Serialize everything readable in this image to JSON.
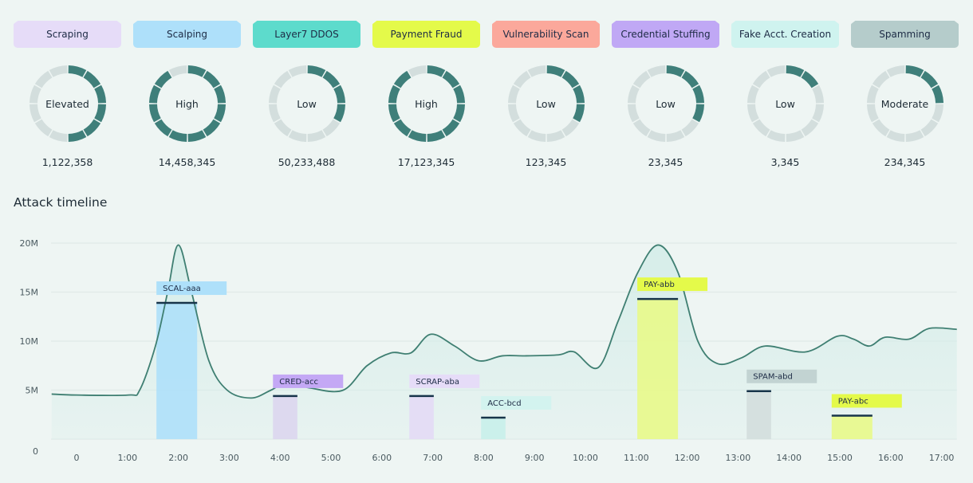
{
  "categories": [
    {
      "name": "Scraping",
      "color": "#e6dcf8",
      "level": "Elevated",
      "segments_active": 6,
      "count": "1,122,358"
    },
    {
      "name": "Scalping",
      "color": "#aee0fa",
      "level": "High",
      "segments_active": 11,
      "count": "14,458,345"
    },
    {
      "name": "Layer7 DDOS",
      "color": "#5ddbcc",
      "level": "Low",
      "segments_active": 4,
      "count": "50,233,488"
    },
    {
      "name": "Payment Fraud",
      "color": "#e4fa4a",
      "level": "High",
      "segments_active": 11,
      "count": "17,123,345"
    },
    {
      "name": "Vulnerability Scan",
      "color": "#fba89b",
      "level": "Low",
      "segments_active": 4,
      "count": "123,345"
    },
    {
      "name": "Credential Stuffing",
      "color": "#c0a8f5",
      "level": "Low",
      "segments_active": 4,
      "count": "23,345"
    },
    {
      "name": "Fake Acct. Creation",
      "color": "#cff3ef",
      "level": "Low",
      "segments_active": 2,
      "count": "3,345"
    },
    {
      "name": "Spamming",
      "color": "#b5cccb",
      "level": "Moderate",
      "segments_active": 3,
      "count": "234,345"
    }
  ],
  "donut_segments_total": 12,
  "colors": {
    "active": "#3f7f7a",
    "inactive": "#d3dedd",
    "line": "#3f7f72",
    "area": "#d5ede9",
    "marker": "#17344a"
  },
  "timeline": {
    "title": "Attack timeline"
  },
  "chart_data": {
    "type": "area",
    "ylim": [
      0,
      20
    ],
    "xlim": [
      -0.5,
      17.3
    ],
    "yticks": [
      {
        "v": 0,
        "label": "0"
      },
      {
        "v": 5,
        "label": "5M"
      },
      {
        "v": 10,
        "label": "10M"
      },
      {
        "v": 15,
        "label": "15M"
      },
      {
        "v": 20,
        "label": "20M"
      }
    ],
    "xticks": [
      {
        "v": 0,
        "label": "0"
      },
      {
        "v": 1,
        "label": "1:00"
      },
      {
        "v": 2,
        "label": "2:00"
      },
      {
        "v": 3,
        "label": "3:00"
      },
      {
        "v": 4,
        "label": "4:00"
      },
      {
        "v": 5,
        "label": "5:00"
      },
      {
        "v": 6,
        "label": "6:00"
      },
      {
        "v": 7,
        "label": "7:00"
      },
      {
        "v": 8,
        "label": "8:00"
      },
      {
        "v": 9,
        "label": "9:00"
      },
      {
        "v": 10,
        "label": "10:00"
      },
      {
        "v": 11,
        "label": "11:00"
      },
      {
        "v": 12,
        "label": "12:00"
      },
      {
        "v": 13,
        "label": "13:00"
      },
      {
        "v": 14,
        "label": "14:00"
      },
      {
        "v": 15,
        "label": "15:00"
      },
      {
        "v": 16,
        "label": "16:00"
      },
      {
        "v": 17,
        "label": "17:00"
      }
    ],
    "grid": true,
    "x": [
      -0.49,
      0,
      1.02,
      1.24,
      1.55,
      1.79,
      2.0,
      2.26,
      2.6,
      2.96,
      3.43,
      3.82,
      4.14,
      4.61,
      5.24,
      5.71,
      6.18,
      6.57,
      6.96,
      7.43,
      7.9,
      8.37,
      8.84,
      9.47,
      9.78,
      10.25,
      10.64,
      11.03,
      11.43,
      11.82,
      12.21,
      12.6,
      13.07,
      13.54,
      14.33,
      14.95,
      15.27,
      15.58,
      15.89,
      16.36,
      16.76,
      17.3
    ],
    "y": [
      4.6,
      4.5,
      4.5,
      5.0,
      9.5,
      15,
      19.8,
      15,
      8,
      5,
      4.2,
      5,
      5.8,
      5.2,
      5.0,
      7.5,
      8.8,
      8.8,
      10.7,
      9.5,
      8,
      8.5,
      8.5,
      8.6,
      8.9,
      7.3,
      12,
      17,
      19.8,
      17,
      10,
      7.7,
      8.3,
      9.5,
      8.9,
      10.5,
      10.2,
      9.5,
      10.4,
      10.2,
      11.3,
      11.2
    ],
    "incidents": [
      {
        "label": "SCAL-aaa",
        "start": 1.57,
        "end": 2.37,
        "value": 13.9,
        "color": "#aee0fa",
        "label_color": "#aee0fa"
      },
      {
        "label": "CRED-acc",
        "start": 3.86,
        "end": 4.34,
        "value": 4.4,
        "color": "#dcd6ee",
        "label_color": "#c4a8f5"
      },
      {
        "label": "SCRAP-aba",
        "start": 6.54,
        "end": 7.02,
        "value": 4.4,
        "color": "#e3daf5",
        "label_color": "#e6dcf8"
      },
      {
        "label": "ACC-bcd",
        "start": 7.95,
        "end": 8.43,
        "value": 2.2,
        "color": "#c8f0ea",
        "label_color": "#d3f3ef"
      },
      {
        "label": "PAY-abb",
        "start": 11.02,
        "end": 11.82,
        "value": 14.3,
        "color": "#e8fa8a",
        "label_color": "#e4fa4a"
      },
      {
        "label": "SPAM-abd",
        "start": 13.17,
        "end": 13.65,
        "value": 4.9,
        "color": "#d3dedd",
        "label_color": "#c2d3d2"
      },
      {
        "label": "PAY-abc",
        "start": 14.84,
        "end": 15.64,
        "value": 2.4,
        "color": "#e8fa8a",
        "label_color": "#e4fa4a"
      }
    ]
  }
}
